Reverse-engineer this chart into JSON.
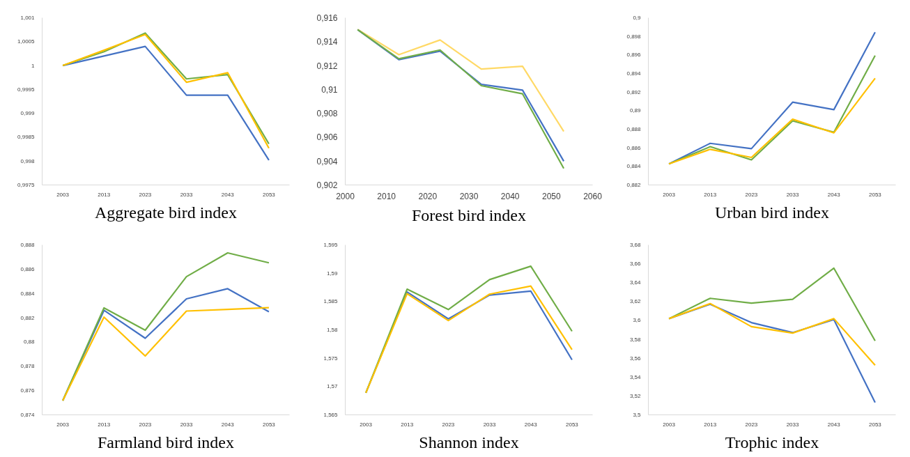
{
  "chart_data": [
    {
      "type": "line",
      "title": "Aggregate bird index",
      "categories": [
        "2003",
        "2013",
        "2023",
        "2033",
        "2043",
        "2053"
      ],
      "ylim": [
        0.9975,
        1.001
      ],
      "yticks": [
        {
          "value": 0.9975,
          "label": "0,9975"
        },
        {
          "value": 0.998,
          "label": "0,998"
        },
        {
          "value": 0.9985,
          "label": "0,9985"
        },
        {
          "value": 0.999,
          "label": "0,999"
        },
        {
          "value": 0.9995,
          "label": "0,9995"
        },
        {
          "value": 1,
          "label": "1"
        },
        {
          "value": 1.0005,
          "label": "1,0005"
        },
        {
          "value": 1.001,
          "label": "1,001"
        }
      ],
      "series": [
        {
          "color": "#4472c4",
          "values": [
            1.0,
            1.0002,
            1.0004,
            0.99938,
            0.99938,
            0.99802
          ]
        },
        {
          "color": "#70ad47",
          "values": [
            1.0,
            1.00029,
            1.00068,
            0.99972,
            0.99981,
            0.99836
          ]
        },
        {
          "color": "#ffc000",
          "values": [
            1.0,
            1.00032,
            1.00065,
            0.99965,
            0.99985,
            0.99827
          ]
        }
      ]
    },
    {
      "type": "line",
      "title": "Forest bird index",
      "x": [
        2003,
        2013,
        2023,
        2033,
        2043,
        2053
      ],
      "xlim": [
        2000,
        2060
      ],
      "xticks": [
        2000,
        2010,
        2020,
        2030,
        2040,
        2050,
        2060
      ],
      "ylim": [
        0.902,
        0.916
      ],
      "yticks": [
        {
          "value": 0.902,
          "label": "0,902"
        },
        {
          "value": 0.904,
          "label": "0,904"
        },
        {
          "value": 0.906,
          "label": "0,906"
        },
        {
          "value": 0.908,
          "label": "0,908"
        },
        {
          "value": 0.91,
          "label": "0,91"
        },
        {
          "value": 0.912,
          "label": "0,912"
        },
        {
          "value": 0.914,
          "label": "0,914"
        },
        {
          "value": 0.916,
          "label": "0,916"
        }
      ],
      "series": [
        {
          "color": "#ffd966",
          "values": [
            0.91503,
            0.91291,
            0.91414,
            0.9117,
            0.91194,
            0.90648
          ]
        },
        {
          "color": "#4472c4",
          "values": [
            0.915,
            0.91249,
            0.9132,
            0.91042,
            0.90994,
            0.90399
          ]
        },
        {
          "color": "#70ad47",
          "values": [
            0.915,
            0.91257,
            0.9133,
            0.91031,
            0.90963,
            0.90339
          ]
        }
      ]
    },
    {
      "type": "line",
      "title": "Urban bird index",
      "categories": [
        "2003",
        "2013",
        "2023",
        "2033",
        "2043",
        "2053"
      ],
      "ylim": [
        0.882,
        0.9
      ],
      "yticks": [
        {
          "value": 0.882,
          "label": "0,882"
        },
        {
          "value": 0.884,
          "label": "0,884"
        },
        {
          "value": 0.886,
          "label": "0,886"
        },
        {
          "value": 0.888,
          "label": "0,888"
        },
        {
          "value": 0.89,
          "label": "0,89"
        },
        {
          "value": 0.892,
          "label": "0,892"
        },
        {
          "value": 0.894,
          "label": "0,894"
        },
        {
          "value": 0.896,
          "label": "0,896"
        },
        {
          "value": 0.898,
          "label": "0,898"
        },
        {
          "value": 0.9,
          "label": "0,9"
        }
      ],
      "series": [
        {
          "color": "#4472c4",
          "values": [
            0.88427,
            0.88648,
            0.88591,
            0.89091,
            0.89011,
            0.89845
          ]
        },
        {
          "color": "#70ad47",
          "values": [
            0.88427,
            0.88612,
            0.8847,
            0.8889,
            0.88767,
            0.89593
          ]
        },
        {
          "color": "#ffc000",
          "values": [
            0.88427,
            0.88584,
            0.88496,
            0.88908,
            0.88761,
            0.89349
          ]
        }
      ]
    },
    {
      "type": "line",
      "title": "Farmland bird index",
      "categories": [
        "2003",
        "2013",
        "2023",
        "2033",
        "2043",
        "2053"
      ],
      "ylim": [
        0.874,
        0.888
      ],
      "yticks": [
        {
          "value": 0.874,
          "label": "0,874"
        },
        {
          "value": 0.876,
          "label": "0,876"
        },
        {
          "value": 0.878,
          "label": "0,878"
        },
        {
          "value": 0.88,
          "label": "0,88"
        },
        {
          "value": 0.882,
          "label": "0,882"
        },
        {
          "value": 0.884,
          "label": "0,884"
        },
        {
          "value": 0.886,
          "label": "0,886"
        },
        {
          "value": 0.888,
          "label": "0,888"
        }
      ],
      "series": [
        {
          "color": "#4472c4",
          "values": [
            0.87518,
            0.88261,
            0.88031,
            0.88355,
            0.88439,
            0.88249
          ]
        },
        {
          "color": "#70ad47",
          "values": [
            0.87518,
            0.88281,
            0.88097,
            0.88538,
            0.88734,
            0.88652
          ]
        },
        {
          "color": "#ffc000",
          "values": [
            0.87518,
            0.88205,
            0.87885,
            0.88255,
            0.88269,
            0.88283
          ]
        }
      ]
    },
    {
      "type": "line",
      "title": "Shannon index",
      "categories": [
        "2003",
        "2013",
        "2023",
        "2033",
        "2043",
        "2053"
      ],
      "ylim": [
        1.565,
        1.595
      ],
      "yticks": [
        {
          "value": 1.565,
          "label": "1,565"
        },
        {
          "value": 1.57,
          "label": "1,57"
        },
        {
          "value": 1.575,
          "label": "1,575"
        },
        {
          "value": 1.58,
          "label": "1,58"
        },
        {
          "value": 1.585,
          "label": "1,585"
        },
        {
          "value": 1.59,
          "label": "1,59"
        },
        {
          "value": 1.595,
          "label": "1,595"
        }
      ],
      "series": [
        {
          "color": "#4472c4",
          "values": [
            1.56889,
            1.58668,
            1.58194,
            1.58613,
            1.58685,
            1.57472
          ]
        },
        {
          "color": "#70ad47",
          "values": [
            1.56889,
            1.58718,
            1.58359,
            1.58887,
            1.59124,
            1.57975
          ]
        },
        {
          "color": "#ffc000",
          "values": [
            1.56889,
            1.58638,
            1.58165,
            1.5863,
            1.58773,
            1.5765
          ]
        }
      ]
    },
    {
      "type": "line",
      "title": "Trophic index",
      "categories": [
        "2003",
        "2013",
        "2023",
        "2033",
        "2043",
        "2053"
      ],
      "ylim": [
        3.5,
        3.68
      ],
      "yticks": [
        {
          "value": 3.5,
          "label": "3,5"
        },
        {
          "value": 3.52,
          "label": "3,52"
        },
        {
          "value": 3.54,
          "label": "3,54"
        },
        {
          "value": 3.56,
          "label": "3,56"
        },
        {
          "value": 3.58,
          "label": "3,58"
        },
        {
          "value": 3.6,
          "label": "3,6"
        },
        {
          "value": 3.62,
          "label": "3,62"
        },
        {
          "value": 3.64,
          "label": "3,64"
        },
        {
          "value": 3.66,
          "label": "3,66"
        },
        {
          "value": 3.68,
          "label": "3,68"
        }
      ],
      "series": [
        {
          "color": "#4472c4",
          "values": [
            3.6019,
            3.6171,
            3.5977,
            3.5871,
            3.6009,
            3.5131
          ]
        },
        {
          "color": "#70ad47",
          "values": [
            3.6019,
            3.6234,
            3.6183,
            3.6224,
            3.6553,
            3.5784
          ]
        },
        {
          "color": "#ffc000",
          "values": [
            3.6019,
            3.6178,
            3.5934,
            3.5866,
            3.6019,
            3.5525
          ]
        }
      ]
    }
  ]
}
